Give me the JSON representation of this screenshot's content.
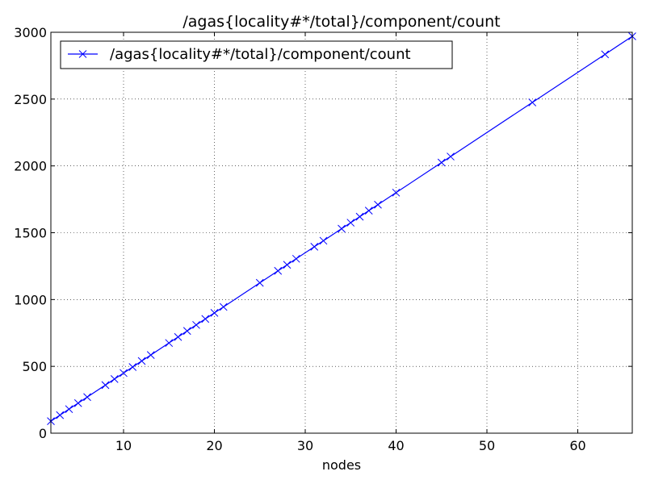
{
  "chart_data": {
    "type": "line",
    "title": "/agas{locality#*/total}/component/count",
    "xlabel": "nodes",
    "ylabel": "",
    "xlim": [
      2,
      66
    ],
    "ylim": [
      0,
      3000
    ],
    "xticks": [
      10,
      20,
      30,
      40,
      50,
      60
    ],
    "yticks": [
      0,
      500,
      1000,
      1500,
      2000,
      2500,
      3000
    ],
    "grid": true,
    "legend": {
      "position": "top-left"
    },
    "series": [
      {
        "name": "/agas{locality#*/total}/component/count",
        "color": "#0000ff",
        "marker": "x",
        "x": [
          2,
          3,
          4,
          5,
          6,
          8,
          9,
          10,
          11,
          12,
          13,
          15,
          16,
          17,
          18,
          19,
          20,
          21,
          25,
          27,
          28,
          29,
          31,
          32,
          34,
          35,
          36,
          37,
          38,
          40,
          45,
          46,
          55,
          63,
          66
        ],
        "y": [
          90,
          135,
          180,
          225,
          270,
          360,
          405,
          450,
          495,
          540,
          585,
          675,
          720,
          765,
          810,
          855,
          900,
          945,
          1125,
          1215,
          1260,
          1305,
          1395,
          1440,
          1530,
          1575,
          1620,
          1665,
          1710,
          1800,
          2025,
          2070,
          2475,
          2835,
          2970
        ]
      }
    ]
  }
}
